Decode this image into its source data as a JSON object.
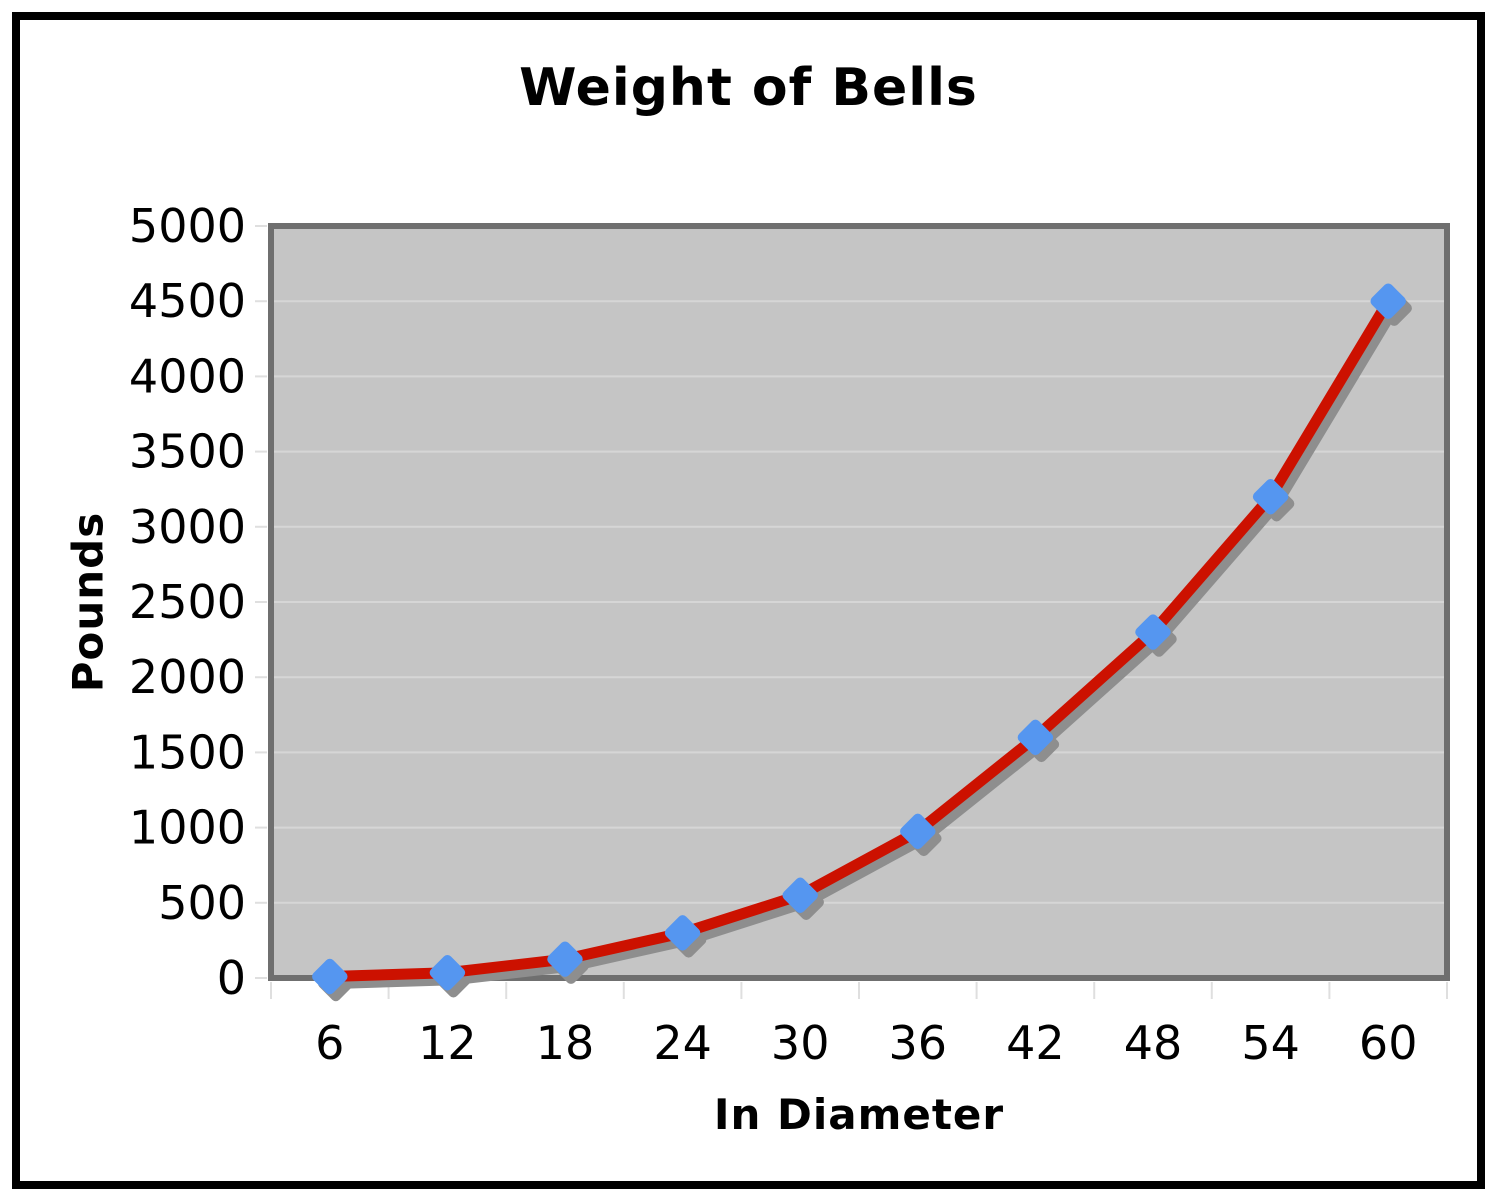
{
  "window": {
    "background": "#ffffff",
    "frame_color": "#000000"
  },
  "chart_data": {
    "type": "line",
    "title": "Weight of Bells",
    "xlabel": "In Diameter",
    "ylabel": "Pounds",
    "categories": [
      6,
      12,
      18,
      24,
      30,
      36,
      42,
      48,
      54,
      60
    ],
    "series": [
      {
        "name": "Weight of Bells",
        "values": [
          10,
          35,
          125,
          300,
          550,
          975,
          1600,
          2300,
          3200,
          4500
        ]
      }
    ],
    "ylim": [
      0,
      5000
    ],
    "y_ticks": [
      0,
      500,
      1000,
      1500,
      2000,
      2500,
      3000,
      3500,
      4000,
      4500,
      5000
    ],
    "grid": "horizontal-only",
    "legend": "none",
    "marker": "diamond-with-shadow",
    "line_style": "thick-with-shadow",
    "colors": {
      "line": "#cc1100",
      "marker": "#5596f0",
      "shadow": "#8e8e8e",
      "plot_bg": "#c5c5c5",
      "gridline": "#d6d6d6",
      "axis_border": "#6f6f6f",
      "tick": "#dfdfdf",
      "text": "#000000"
    }
  }
}
